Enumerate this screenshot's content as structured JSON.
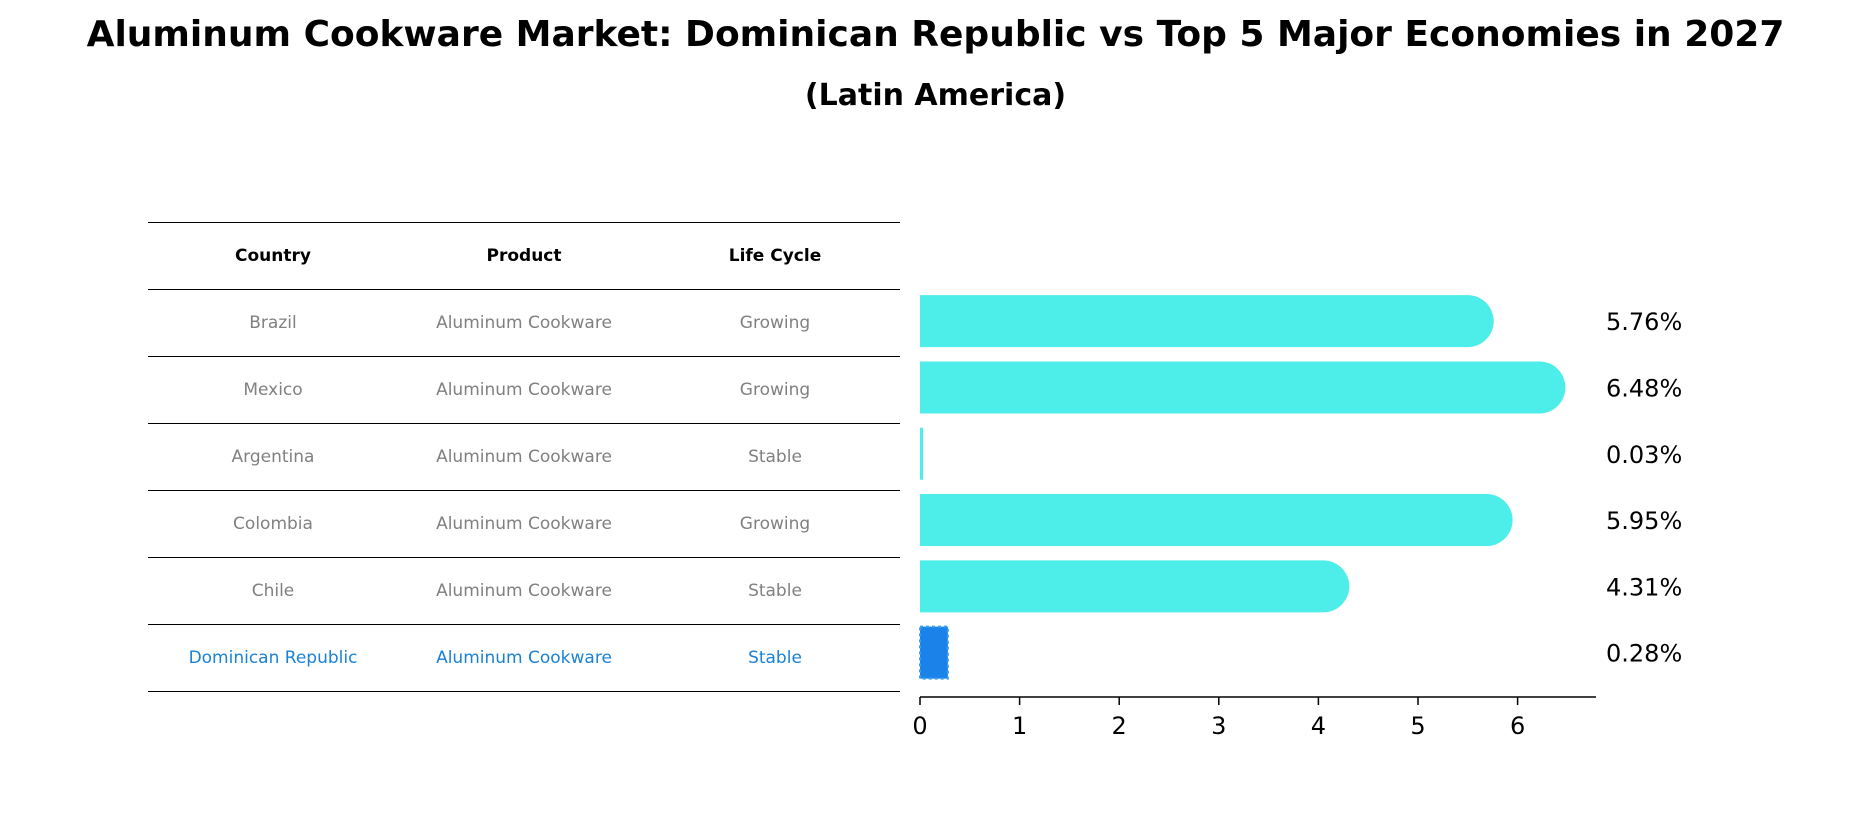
{
  "title": "Aluminum Cookware Market: Dominican Republic vs Top 5 Major Economies in 2027",
  "subtitle": "(Latin America)",
  "table": {
    "headers": [
      "Country",
      "Product",
      "Life Cycle"
    ],
    "rows": [
      {
        "country": "Brazil",
        "product": "Aluminum Cookware",
        "cycle": "Growing"
      },
      {
        "country": "Mexico",
        "product": "Aluminum Cookware",
        "cycle": "Growing"
      },
      {
        "country": "Argentina",
        "product": "Aluminum Cookware",
        "cycle": "Stable"
      },
      {
        "country": "Colombia",
        "product": "Aluminum Cookware",
        "cycle": "Growing"
      },
      {
        "country": "Chile",
        "product": "Aluminum Cookware",
        "cycle": "Stable"
      },
      {
        "country": "Dominican Republic",
        "product": "Aluminum Cookware",
        "cycle": "Stable"
      }
    ]
  },
  "chart_data": {
    "type": "bar",
    "orientation": "horizontal",
    "categories": [
      "Brazil",
      "Mexico",
      "Argentina",
      "Colombia",
      "Chile",
      "Dominican Republic"
    ],
    "values": [
      5.76,
      6.48,
      0.03,
      5.95,
      4.31,
      0.28
    ],
    "value_labels": [
      "5.76%",
      "6.48%",
      "0.03%",
      "5.95%",
      "4.31%",
      "0.28%"
    ],
    "highlight": "Dominican Republic",
    "xticks": [
      0,
      1,
      2,
      3,
      4,
      5,
      6
    ],
    "xlim": [
      0,
      6.8
    ],
    "colors": {
      "default": "#4dede9",
      "highlight": "#1a82e8",
      "text": "#808080",
      "highlight_text": "#1a82d6"
    }
  }
}
